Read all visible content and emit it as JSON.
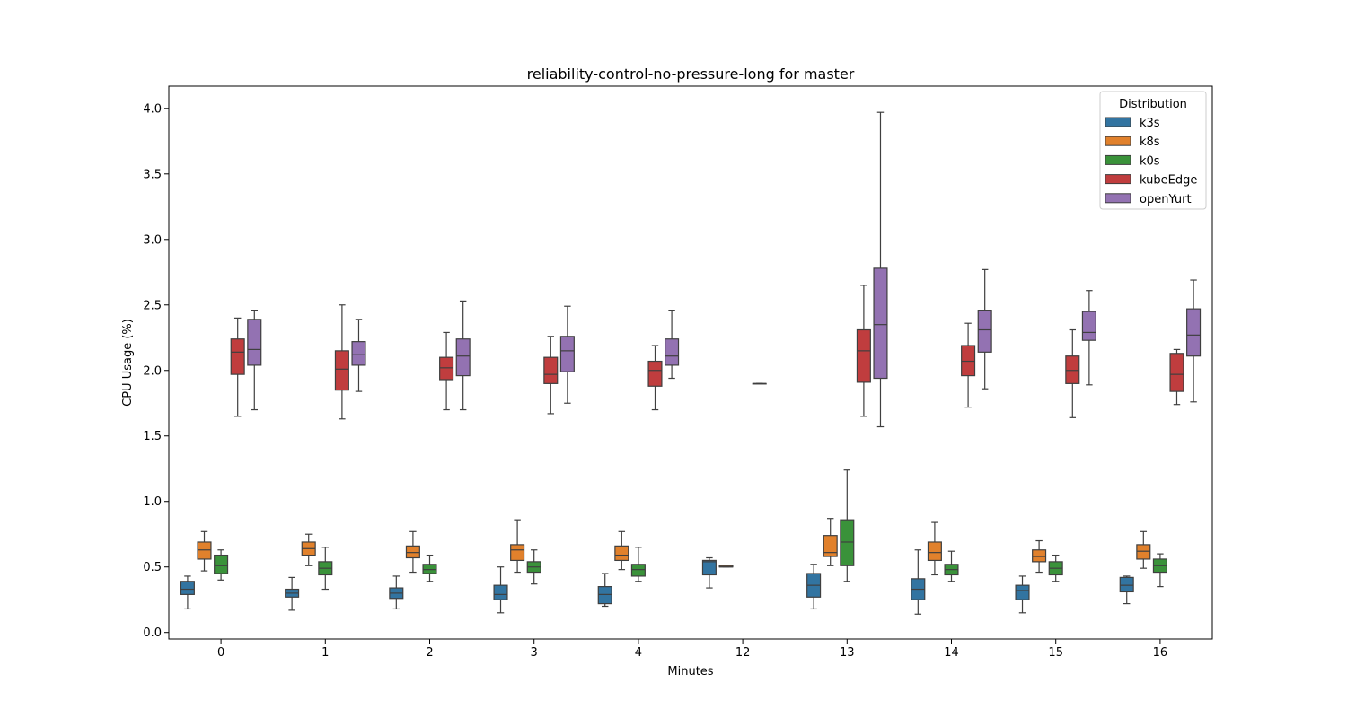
{
  "chart_data": {
    "type": "box",
    "title": "reliability-control-no-pressure-long for master",
    "xlabel": "Minutes",
    "ylabel": "CPU Usage (%)",
    "ylim": [
      -0.05,
      4.17
    ],
    "yticks": [
      "0.0",
      "0.5",
      "1.0",
      "1.5",
      "2.0",
      "2.5",
      "3.0",
      "3.5",
      "4.0"
    ],
    "categories": [
      "0",
      "1",
      "2",
      "3",
      "4",
      "12",
      "13",
      "14",
      "15",
      "16"
    ],
    "grid": false,
    "legend": {
      "title": "Distribution",
      "position": "top-right"
    },
    "series": [
      {
        "name": "k3s",
        "color": "#3274a1",
        "boxes": [
          {
            "whislo": 0.18,
            "q1": 0.29,
            "med": 0.33,
            "q3": 0.39,
            "whishi": 0.43
          },
          {
            "whislo": 0.17,
            "q1": 0.27,
            "med": 0.3,
            "q3": 0.33,
            "whishi": 0.42
          },
          {
            "whislo": 0.18,
            "q1": 0.26,
            "med": 0.3,
            "q3": 0.34,
            "whishi": 0.43
          },
          {
            "whislo": 0.15,
            "q1": 0.25,
            "med": 0.29,
            "q3": 0.36,
            "whishi": 0.5
          },
          {
            "whislo": 0.2,
            "q1": 0.22,
            "med": 0.29,
            "q3": 0.35,
            "whishi": 0.45
          },
          {
            "whislo": 0.34,
            "q1": 0.44,
            "med": 0.54,
            "q3": 0.55,
            "whishi": 0.57
          },
          {
            "whislo": 0.18,
            "q1": 0.27,
            "med": 0.36,
            "q3": 0.45,
            "whishi": 0.52
          },
          {
            "whislo": 0.14,
            "q1": 0.25,
            "med": 0.33,
            "q3": 0.41,
            "whishi": 0.63
          },
          {
            "whislo": 0.15,
            "q1": 0.25,
            "med": 0.32,
            "q3": 0.36,
            "whishi": 0.43
          },
          {
            "whislo": 0.22,
            "q1": 0.31,
            "med": 0.36,
            "q3": 0.42,
            "whishi": 0.43
          }
        ]
      },
      {
        "name": "k8s",
        "color": "#e1812c",
        "boxes": [
          {
            "whislo": 0.47,
            "q1": 0.56,
            "med": 0.63,
            "q3": 0.69,
            "whishi": 0.77
          },
          {
            "whislo": 0.51,
            "q1": 0.59,
            "med": 0.64,
            "q3": 0.69,
            "whishi": 0.75
          },
          {
            "whislo": 0.46,
            "q1": 0.57,
            "med": 0.61,
            "q3": 0.66,
            "whishi": 0.77
          },
          {
            "whislo": 0.46,
            "q1": 0.55,
            "med": 0.63,
            "q3": 0.67,
            "whishi": 0.86
          },
          {
            "whislo": 0.48,
            "q1": 0.55,
            "med": 0.59,
            "q3": 0.66,
            "whishi": 0.77
          },
          {
            "whislo": 0.5,
            "q1": 0.5,
            "med": 0.5,
            "q3": 0.51,
            "whishi": 0.51
          },
          {
            "whislo": 0.51,
            "q1": 0.58,
            "med": 0.61,
            "q3": 0.74,
            "whishi": 0.87
          },
          {
            "whislo": 0.44,
            "q1": 0.55,
            "med": 0.61,
            "q3": 0.69,
            "whishi": 0.84
          },
          {
            "whislo": 0.46,
            "q1": 0.54,
            "med": 0.58,
            "q3": 0.63,
            "whishi": 0.7
          },
          {
            "whislo": 0.49,
            "q1": 0.56,
            "med": 0.62,
            "q3": 0.67,
            "whishi": 0.77
          }
        ]
      },
      {
        "name": "k0s",
        "color": "#3a923a",
        "boxes": [
          {
            "whislo": 0.4,
            "q1": 0.45,
            "med": 0.51,
            "q3": 0.59,
            "whishi": 0.63
          },
          {
            "whislo": 0.33,
            "q1": 0.44,
            "med": 0.49,
            "q3": 0.54,
            "whishi": 0.65
          },
          {
            "whislo": 0.39,
            "q1": 0.45,
            "med": 0.48,
            "q3": 0.52,
            "whishi": 0.59
          },
          {
            "whislo": 0.37,
            "q1": 0.46,
            "med": 0.5,
            "q3": 0.54,
            "whishi": 0.63
          },
          {
            "whislo": 0.39,
            "q1": 0.43,
            "med": 0.48,
            "q3": 0.52,
            "whishi": 0.65
          },
          null,
          {
            "whislo": 0.39,
            "q1": 0.51,
            "med": 0.69,
            "q3": 0.86,
            "whishi": 1.24
          },
          {
            "whislo": 0.39,
            "q1": 0.44,
            "med": 0.48,
            "q3": 0.52,
            "whishi": 0.62
          },
          {
            "whislo": 0.39,
            "q1": 0.44,
            "med": 0.49,
            "q3": 0.54,
            "whishi": 0.59
          },
          {
            "whislo": 0.35,
            "q1": 0.46,
            "med": 0.51,
            "q3": 0.56,
            "whishi": 0.6
          }
        ]
      },
      {
        "name": "kubeEdge",
        "color": "#c03d3e",
        "boxes": [
          {
            "whislo": 1.65,
            "q1": 1.97,
            "med": 2.14,
            "q3": 2.24,
            "whishi": 2.4
          },
          {
            "whislo": 1.63,
            "q1": 1.85,
            "med": 2.01,
            "q3": 2.15,
            "whishi": 2.5
          },
          {
            "whislo": 1.7,
            "q1": 1.93,
            "med": 2.02,
            "q3": 2.1,
            "whishi": 2.29
          },
          {
            "whislo": 1.67,
            "q1": 1.9,
            "med": 1.97,
            "q3": 2.1,
            "whishi": 2.26
          },
          {
            "whislo": 1.7,
            "q1": 1.88,
            "med": 2.0,
            "q3": 2.07,
            "whishi": 2.19
          },
          {
            "whislo": 1.9,
            "q1": 1.9,
            "med": 1.9,
            "q3": 1.9,
            "whishi": 1.9
          },
          {
            "whislo": 1.65,
            "q1": 1.91,
            "med": 2.15,
            "q3": 2.31,
            "whishi": 2.65
          },
          {
            "whislo": 1.72,
            "q1": 1.96,
            "med": 2.07,
            "q3": 2.19,
            "whishi": 2.36
          },
          {
            "whislo": 1.64,
            "q1": 1.9,
            "med": 2.0,
            "q3": 2.11,
            "whishi": 2.31
          },
          {
            "whislo": 1.74,
            "q1": 1.84,
            "med": 1.97,
            "q3": 2.13,
            "whishi": 2.16
          }
        ]
      },
      {
        "name": "openYurt",
        "color": "#9372b2",
        "boxes": [
          {
            "whislo": 1.7,
            "q1": 2.04,
            "med": 2.16,
            "q3": 2.39,
            "whishi": 2.46
          },
          {
            "whislo": 1.84,
            "q1": 2.04,
            "med": 2.12,
            "q3": 2.22,
            "whishi": 2.39
          },
          {
            "whislo": 1.7,
            "q1": 1.96,
            "med": 2.11,
            "q3": 2.24,
            "whishi": 2.53
          },
          {
            "whislo": 1.75,
            "q1": 1.99,
            "med": 2.15,
            "q3": 2.26,
            "whishi": 2.49
          },
          {
            "whislo": 1.94,
            "q1": 2.04,
            "med": 2.11,
            "q3": 2.24,
            "whishi": 2.46
          },
          null,
          {
            "whislo": 1.57,
            "q1": 1.94,
            "med": 2.35,
            "q3": 2.78,
            "whishi": 3.97
          },
          {
            "whislo": 1.86,
            "q1": 2.14,
            "med": 2.31,
            "q3": 2.46,
            "whishi": 2.77
          },
          {
            "whislo": 1.89,
            "q1": 2.23,
            "med": 2.29,
            "q3": 2.45,
            "whishi": 2.61
          },
          {
            "whislo": 1.76,
            "q1": 2.11,
            "med": 2.27,
            "q3": 2.47,
            "whishi": 2.69
          }
        ]
      }
    ]
  }
}
